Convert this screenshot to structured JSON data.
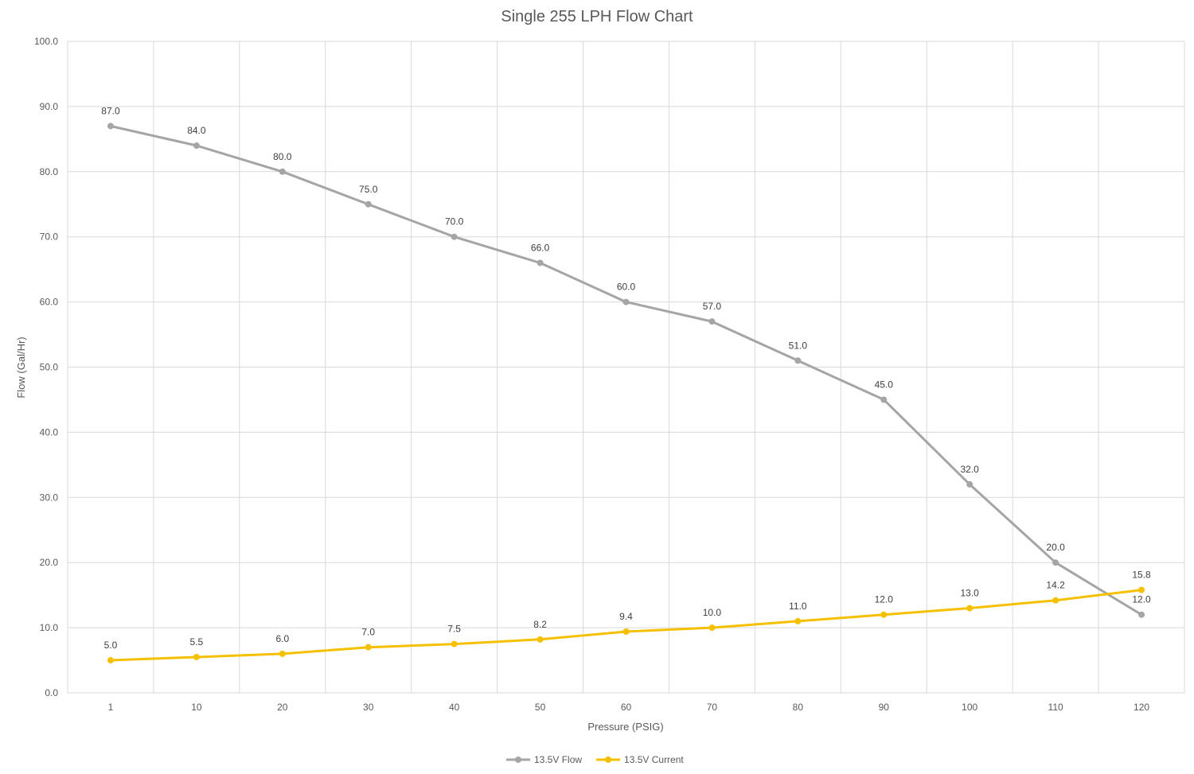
{
  "chart_data": {
    "type": "line",
    "title": "Single 255 LPH Flow Chart",
    "xlabel": "Pressure (PSIG)",
    "ylabel": "Flow (Gal/Hr)",
    "categories": [
      "1",
      "10",
      "20",
      "30",
      "40",
      "50",
      "60",
      "70",
      "80",
      "90",
      "100",
      "110",
      "120"
    ],
    "ylim": [
      0,
      100
    ],
    "yticks": [
      "0.0",
      "10.0",
      "20.0",
      "30.0",
      "40.0",
      "50.0",
      "60.0",
      "70.0",
      "80.0",
      "90.0",
      "100.0"
    ],
    "grid": true,
    "legend_position": "bottom",
    "series": [
      {
        "name": "13.5V Flow",
        "color": "#a5a5a5",
        "values": [
          87.0,
          84.0,
          80.0,
          75.0,
          70.0,
          66.0,
          60.0,
          57.0,
          51.0,
          45.0,
          32.0,
          20.0,
          12.0
        ],
        "labels": [
          "87.0",
          "84.0",
          "80.0",
          "75.0",
          "70.0",
          "66.0",
          "60.0",
          "57.0",
          "51.0",
          "45.0",
          "32.0",
          "20.0",
          "12.0"
        ]
      },
      {
        "name": "13.5V Current",
        "color": "#f5c000",
        "values": [
          5.0,
          5.5,
          6.0,
          7.0,
          7.5,
          8.2,
          9.4,
          10.0,
          11.0,
          12.0,
          13.0,
          14.2,
          15.8
        ],
        "labels": [
          "5.0",
          "5.5",
          "6.0",
          "7.0",
          "7.5",
          "8.2",
          "9.4",
          "10.0",
          "11.0",
          "12.0",
          "13.0",
          "14.2",
          "15.8"
        ]
      }
    ]
  }
}
